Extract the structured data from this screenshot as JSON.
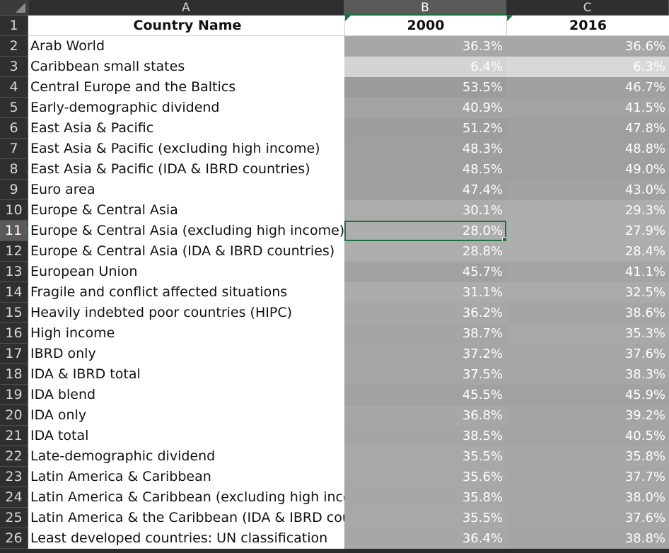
{
  "sheet": {
    "columns": [
      "A",
      "B",
      "C"
    ],
    "header": {
      "country": "Country Name",
      "col_b": "2000",
      "col_c": "2016"
    },
    "selected_cell": "B11",
    "rows": [
      {
        "num": "2",
        "name": "Arab World",
        "v2000": "36.3%",
        "v2016": "36.6%"
      },
      {
        "num": "3",
        "name": "Caribbean small states",
        "v2000": "6.4%",
        "v2016": "6.3%"
      },
      {
        "num": "4",
        "name": "Central Europe and the Baltics",
        "v2000": "53.5%",
        "v2016": "46.7%"
      },
      {
        "num": "5",
        "name": "Early-demographic dividend",
        "v2000": "40.9%",
        "v2016": "41.5%"
      },
      {
        "num": "6",
        "name": "East Asia & Pacific",
        "v2000": "51.2%",
        "v2016": "47.8%"
      },
      {
        "num": "7",
        "name": "East Asia & Pacific (excluding high income)",
        "v2000": "48.3%",
        "v2016": "48.8%"
      },
      {
        "num": "8",
        "name": "East Asia & Pacific (IDA & IBRD countries)",
        "v2000": "48.5%",
        "v2016": "49.0%"
      },
      {
        "num": "9",
        "name": "Euro area",
        "v2000": "47.4%",
        "v2016": "43.0%"
      },
      {
        "num": "10",
        "name": "Europe & Central Asia",
        "v2000": "30.1%",
        "v2016": "29.3%"
      },
      {
        "num": "11",
        "name": "Europe & Central Asia (excluding high income)",
        "v2000": "28.0%",
        "v2016": "27.9%"
      },
      {
        "num": "12",
        "name": "Europe & Central Asia (IDA & IBRD countries)",
        "v2000": "28.8%",
        "v2016": "28.4%"
      },
      {
        "num": "13",
        "name": "European Union",
        "v2000": "45.7%",
        "v2016": "41.1%"
      },
      {
        "num": "14",
        "name": "Fragile and conflict affected situations",
        "v2000": "31.1%",
        "v2016": "32.5%"
      },
      {
        "num": "15",
        "name": "Heavily indebted poor countries (HIPC)",
        "v2000": "36.2%",
        "v2016": "38.6%"
      },
      {
        "num": "16",
        "name": "High income",
        "v2000": "38.7%",
        "v2016": "35.3%"
      },
      {
        "num": "17",
        "name": "IBRD only",
        "v2000": "37.2%",
        "v2016": "37.6%"
      },
      {
        "num": "18",
        "name": "IDA & IBRD total",
        "v2000": "37.5%",
        "v2016": "38.3%"
      },
      {
        "num": "19",
        "name": "IDA blend",
        "v2000": "45.5%",
        "v2016": "45.9%"
      },
      {
        "num": "20",
        "name": "IDA only",
        "v2000": "36.8%",
        "v2016": "39.2%"
      },
      {
        "num": "21",
        "name": "IDA total",
        "v2000": "38.5%",
        "v2016": "40.5%"
      },
      {
        "num": "22",
        "name": "Late-demographic dividend",
        "v2000": "35.5%",
        "v2016": "35.8%"
      },
      {
        "num": "23",
        "name": "Latin America & Caribbean",
        "v2000": "35.6%",
        "v2016": "37.7%"
      },
      {
        "num": "24",
        "name": "Latin America & Caribbean (excluding high income)",
        "v2000": "35.8%",
        "v2016": "38.0%"
      },
      {
        "num": "25",
        "name": "Latin America & the Caribbean (IDA & IBRD countries)",
        "v2000": "35.5%",
        "v2016": "37.6%"
      },
      {
        "num": "26",
        "name": "Least developed countries: UN classification",
        "v2000": "36.4%",
        "v2016": "38.8%"
      }
    ]
  },
  "colors": {
    "accent": "#1e7145",
    "scale_low": "#d8d8d8",
    "scale_high": "#9c9c9c"
  }
}
